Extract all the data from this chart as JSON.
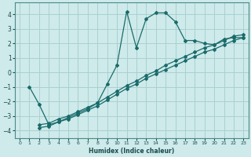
{
  "xlabel": "Humidex (Indice chaleur)",
  "bg_color": "#ceeaea",
  "grid_color": "#aad0d0",
  "line_color": "#1a6b6b",
  "xlim": [
    -0.5,
    23.5
  ],
  "ylim": [
    -4.5,
    4.8
  ],
  "yticks": [
    -4,
    -3,
    -2,
    -1,
    0,
    1,
    2,
    3,
    4
  ],
  "xticks": [
    0,
    1,
    2,
    3,
    4,
    5,
    6,
    7,
    8,
    9,
    10,
    11,
    12,
    13,
    14,
    15,
    16,
    17,
    18,
    19,
    20,
    21,
    22,
    23
  ],
  "line1_x": [
    1,
    2,
    3,
    4,
    5,
    6,
    7,
    8,
    9,
    10,
    11,
    12,
    13,
    14,
    15,
    16,
    17,
    18,
    19,
    20,
    21,
    22,
    23
  ],
  "line1_y": [
    -1.0,
    -2.2,
    -3.6,
    -3.4,
    -3.1,
    -2.8,
    -2.5,
    -2.1,
    -0.8,
    0.5,
    4.2,
    1.7,
    3.7,
    4.1,
    4.1,
    3.5,
    2.2,
    2.2,
    2.0,
    1.9,
    2.3,
    2.4,
    2.4
  ],
  "line2_x": [
    2,
    3,
    4,
    5,
    6,
    7,
    8,
    9,
    10,
    11,
    12,
    13,
    14,
    15,
    16,
    17,
    18,
    19,
    20,
    21,
    22,
    23
  ],
  "line2_y": [
    -3.8,
    -3.7,
    -3.4,
    -3.2,
    -2.9,
    -2.6,
    -2.3,
    -1.9,
    -1.5,
    -1.1,
    -0.8,
    -0.4,
    -0.1,
    0.2,
    0.5,
    0.8,
    1.1,
    1.4,
    1.6,
    1.9,
    2.2,
    2.4
  ],
  "line3_x": [
    2,
    3,
    4,
    5,
    6,
    7,
    8,
    9,
    10,
    11,
    12,
    13,
    14,
    15,
    16,
    17,
    18,
    19,
    20,
    21,
    22,
    23
  ],
  "line3_y": [
    -3.6,
    -3.5,
    -3.2,
    -3.0,
    -2.7,
    -2.4,
    -2.1,
    -1.7,
    -1.3,
    -0.9,
    -0.6,
    -0.2,
    0.1,
    0.5,
    0.8,
    1.1,
    1.4,
    1.7,
    1.9,
    2.2,
    2.5,
    2.6
  ]
}
